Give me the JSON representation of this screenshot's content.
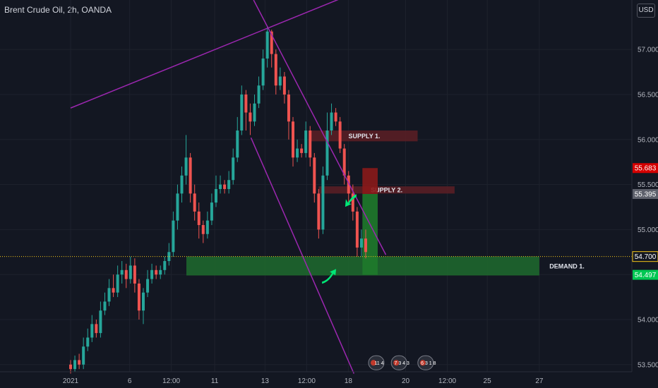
{
  "header": {
    "title": "Brent Crude Oil, 2h, OANDA",
    "currency": "USD"
  },
  "colors": {
    "bg": "#131722",
    "up": "#26a69a",
    "down": "#ef5350",
    "channel": "#9c27b0",
    "supply": "#5d1f24",
    "demand": "#1e6b2e",
    "target": "#1f7a2b",
    "stop": "#8b1a1a",
    "arrow": "#00e676",
    "current": "#f5c518"
  },
  "chart_data": {
    "type": "candlestick",
    "x_ticks": [
      "2021",
      "6",
      "12:00",
      "11",
      "13",
      "12:00",
      "18",
      "20",
      "12:00",
      "25",
      "27"
    ],
    "y_ticks": [
      "53.500",
      "54.000",
      "54.500",
      "55.000",
      "55.500",
      "56.000",
      "56.500",
      "57.000"
    ],
    "ylim": [
      53.42,
      57.55
    ],
    "bars_x_range": [
      0,
      170
    ],
    "x_tick_positions": [
      0,
      34,
      58,
      83,
      112,
      136,
      160,
      193,
      217,
      240,
      270
    ],
    "candles": [
      [
        53.5,
        53.45,
        53.55,
        53.4
      ],
      [
        53.45,
        53.55,
        53.6,
        53.42
      ],
      [
        53.55,
        53.5,
        53.62,
        53.45
      ],
      [
        53.5,
        53.7,
        53.8,
        53.45
      ],
      [
        53.7,
        53.8,
        53.9,
        53.65
      ],
      [
        53.8,
        53.95,
        54.05,
        53.75
      ],
      [
        53.95,
        53.85,
        54.0,
        53.8
      ],
      [
        53.85,
        54.1,
        54.2,
        53.8
      ],
      [
        54.1,
        54.2,
        54.3,
        54.05
      ],
      [
        54.2,
        54.35,
        54.45,
        54.15
      ],
      [
        54.35,
        54.3,
        54.5,
        54.25
      ],
      [
        54.3,
        54.5,
        54.6,
        54.25
      ],
      [
        54.5,
        54.55,
        54.65,
        54.4
      ],
      [
        54.55,
        54.45,
        54.62,
        54.35
      ],
      [
        54.45,
        54.6,
        54.7,
        54.4
      ],
      [
        54.6,
        54.4,
        54.68,
        54.3
      ],
      [
        54.4,
        54.1,
        54.45,
        54.0
      ],
      [
        54.1,
        54.3,
        54.35,
        53.95
      ],
      [
        54.3,
        54.45,
        54.55,
        54.25
      ],
      [
        54.45,
        54.55,
        54.62,
        54.4
      ],
      [
        54.55,
        54.5,
        54.6,
        54.45
      ],
      [
        54.5,
        54.55,
        54.6,
        54.45
      ],
      [
        54.55,
        54.65,
        54.7,
        54.5
      ],
      [
        54.65,
        54.75,
        54.85,
        54.6
      ],
      [
        54.75,
        55.1,
        55.2,
        54.7
      ],
      [
        55.1,
        55.4,
        55.5,
        55.0
      ],
      [
        55.4,
        55.6,
        55.7,
        55.3
      ],
      [
        55.6,
        55.8,
        56.05,
        55.5
      ],
      [
        55.8,
        55.4,
        55.85,
        55.3
      ],
      [
        55.4,
        55.2,
        55.5,
        55.1
      ],
      [
        55.2,
        55.05,
        55.3,
        54.9
      ],
      [
        55.05,
        54.95,
        55.1,
        54.85
      ],
      [
        54.95,
        55.1,
        55.2,
        54.9
      ],
      [
        55.1,
        55.3,
        55.4,
        55.05
      ],
      [
        55.3,
        55.45,
        55.6,
        55.25
      ],
      [
        55.45,
        55.5,
        55.6,
        55.4
      ],
      [
        55.5,
        55.45,
        55.55,
        55.4
      ],
      [
        55.45,
        55.55,
        55.65,
        55.4
      ],
      [
        55.55,
        55.8,
        55.9,
        55.5
      ],
      [
        55.8,
        56.1,
        56.25,
        55.75
      ],
      [
        56.1,
        56.5,
        56.6,
        56.05
      ],
      [
        56.5,
        56.3,
        56.55,
        56.1
      ],
      [
        56.3,
        56.2,
        56.4,
        56.05
      ],
      [
        56.2,
        56.4,
        56.5,
        56.15
      ],
      [
        56.4,
        56.6,
        56.7,
        56.35
      ],
      [
        56.6,
        56.9,
        57.0,
        56.55
      ],
      [
        56.9,
        57.2,
        57.25,
        56.8
      ],
      [
        57.2,
        56.95,
        57.22,
        56.8
      ],
      [
        56.95,
        56.6,
        57.0,
        56.5
      ],
      [
        56.6,
        56.7,
        56.8,
        56.55
      ],
      [
        56.7,
        56.5,
        56.75,
        56.4
      ],
      [
        56.5,
        56.2,
        56.55,
        56.0
      ],
      [
        56.2,
        55.8,
        56.25,
        55.7
      ],
      [
        55.8,
        55.9,
        56.0,
        55.75
      ],
      [
        55.9,
        55.85,
        55.95,
        55.8
      ],
      [
        55.85,
        56.1,
        56.2,
        55.8
      ],
      [
        56.1,
        55.8,
        56.15,
        55.7
      ],
      [
        55.8,
        55.4,
        55.85,
        55.3
      ],
      [
        55.4,
        55.0,
        55.45,
        54.9
      ],
      [
        55.0,
        55.6,
        55.7,
        54.95
      ],
      [
        55.6,
        56.1,
        56.3,
        55.55
      ],
      [
        56.1,
        56.3,
        56.4,
        56.05
      ],
      [
        56.3,
        56.2,
        56.35,
        56.15
      ],
      [
        56.2,
        55.9,
        56.25,
        55.85
      ],
      [
        55.9,
        55.6,
        55.95,
        55.5
      ],
      [
        55.6,
        55.4,
        55.65,
        55.3
      ],
      [
        55.4,
        55.2,
        55.5,
        55.1
      ],
      [
        55.2,
        54.8,
        55.25,
        54.7
      ],
      [
        54.8,
        54.9,
        55.0,
        54.7
      ],
      [
        54.9,
        54.75,
        55.0,
        54.68
      ]
    ],
    "channel_upper": {
      "from": [
        105.4,
        57.55
      ],
      "to": [
        181.6,
        54.72
      ]
    },
    "channel_lower": {
      "from": [
        103.9,
        56.02
      ],
      "to": [
        163.2,
        53.4
      ]
    },
    "trend_line": {
      "from": [
        0,
        56.35
      ],
      "to": [
        175.3,
        57.72
      ]
    },
    "supply_zones": [
      {
        "label": "SUPPLY 1.",
        "x0": 138.5,
        "x1": 199.9,
        "top": 56.1,
        "bottom": 55.98
      },
      {
        "label": "SUPPLY 2.",
        "x0": 142.9,
        "x1": 221.2,
        "top": 55.48,
        "bottom": 55.4
      }
    ],
    "demand_zones": [
      {
        "label": "DEMAND 1.",
        "x0": 66.7,
        "x1": 270.0,
        "top": 54.7,
        "bottom": 54.49
      }
    ],
    "position": {
      "x0": 168.1,
      "x1": 176.9,
      "entry": 55.395,
      "stop": 55.683,
      "target": 54.497
    },
    "price_tags": [
      {
        "value": "55.683",
        "price": 55.683,
        "color": "#d50000"
      },
      {
        "value": "55.395",
        "price": 55.395,
        "color": "#5d606b"
      },
      {
        "value": "54.700",
        "price": 54.7,
        "color": "#131722"
      },
      {
        "value": "54.497",
        "price": 54.497,
        "color": "#00c853"
      }
    ],
    "current_price": 54.7,
    "arrows": [
      {
        "dir": "down-left",
        "x": 160.6,
        "price": 55.33
      },
      {
        "dir": "up-right",
        "x": 148.9,
        "price": 54.5
      }
    ],
    "events": [
      {
        "label": "11 4",
        "x": 176.1,
        "price": 53.52
      },
      {
        "label": "7 3 4 3",
        "x": 189.2,
        "price": 53.52
      },
      {
        "label": "6 3 1 8",
        "x": 204.5,
        "price": 53.52
      }
    ]
  }
}
